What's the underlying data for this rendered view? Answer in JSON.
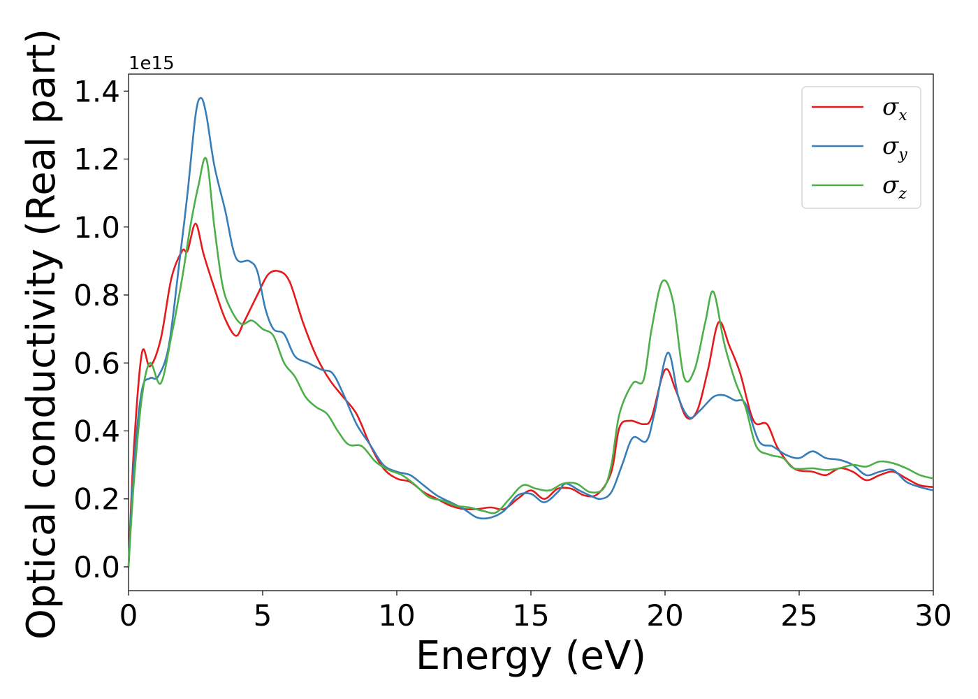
{
  "chart_data": {
    "type": "line",
    "xlabel": "Energy (eV)",
    "ylabel": "Optical conductivity (Real part)",
    "y_offset_label": "1e15",
    "xlim": [
      0,
      30
    ],
    "ylim": [
      -0.07,
      1.45
    ],
    "x_ticks": [
      0,
      5,
      10,
      15,
      20,
      25,
      30
    ],
    "y_ticks": [
      0.0,
      0.2,
      0.4,
      0.6,
      0.8,
      1.0,
      1.2,
      1.4
    ],
    "x_tick_labels": [
      "0",
      "5",
      "10",
      "15",
      "20",
      "25",
      "30"
    ],
    "y_tick_labels": [
      "0.0",
      "0.2",
      "0.4",
      "0.6",
      "0.8",
      "1.0",
      "1.2",
      "1.4"
    ],
    "grid": false,
    "legend_position": "top-right",
    "series": [
      {
        "name": "σx",
        "symbol": "σ",
        "subscript": "x",
        "color": "#e41a1c",
        "points": [
          [
            0,
            0
          ],
          [
            0.2,
            0.35
          ],
          [
            0.5,
            0.63
          ],
          [
            0.8,
            0.59
          ],
          [
            1.2,
            0.67
          ],
          [
            1.6,
            0.85
          ],
          [
            2.0,
            0.93
          ],
          [
            2.2,
            0.93
          ],
          [
            2.5,
            1.01
          ],
          [
            2.8,
            0.92
          ],
          [
            3.2,
            0.82
          ],
          [
            3.6,
            0.73
          ],
          [
            4.0,
            0.68
          ],
          [
            4.3,
            0.72
          ],
          [
            4.8,
            0.8
          ],
          [
            5.2,
            0.86
          ],
          [
            5.6,
            0.87
          ],
          [
            6.0,
            0.84
          ],
          [
            6.5,
            0.72
          ],
          [
            7.0,
            0.62
          ],
          [
            7.5,
            0.55
          ],
          [
            8.0,
            0.5
          ],
          [
            8.5,
            0.45
          ],
          [
            9.0,
            0.36
          ],
          [
            9.5,
            0.29
          ],
          [
            10.0,
            0.26
          ],
          [
            10.5,
            0.25
          ],
          [
            11.0,
            0.22
          ],
          [
            11.5,
            0.2
          ],
          [
            12.0,
            0.18
          ],
          [
            12.5,
            0.17
          ],
          [
            13.0,
            0.17
          ],
          [
            13.5,
            0.175
          ],
          [
            14.0,
            0.17
          ],
          [
            14.5,
            0.2
          ],
          [
            15.0,
            0.225
          ],
          [
            15.5,
            0.2
          ],
          [
            16.0,
            0.23
          ],
          [
            16.5,
            0.23
          ],
          [
            17.0,
            0.21
          ],
          [
            17.5,
            0.215
          ],
          [
            18.0,
            0.28
          ],
          [
            18.3,
            0.41
          ],
          [
            18.7,
            0.43
          ],
          [
            19.2,
            0.42
          ],
          [
            19.5,
            0.44
          ],
          [
            20.0,
            0.58
          ],
          [
            20.4,
            0.52
          ],
          [
            20.8,
            0.44
          ],
          [
            21.2,
            0.46
          ],
          [
            21.6,
            0.58
          ],
          [
            22.0,
            0.72
          ],
          [
            22.4,
            0.65
          ],
          [
            22.8,
            0.57
          ],
          [
            23.3,
            0.43
          ],
          [
            23.8,
            0.42
          ],
          [
            24.2,
            0.35
          ],
          [
            24.8,
            0.29
          ],
          [
            25.5,
            0.28
          ],
          [
            26.0,
            0.27
          ],
          [
            26.5,
            0.29
          ],
          [
            27.0,
            0.28
          ],
          [
            27.5,
            0.255
          ],
          [
            28.0,
            0.27
          ],
          [
            28.5,
            0.28
          ],
          [
            29.0,
            0.26
          ],
          [
            29.5,
            0.24
          ],
          [
            30.0,
            0.235
          ]
        ]
      },
      {
        "name": "σy",
        "symbol": "σ",
        "subscript": "y",
        "color": "#377eb8",
        "points": [
          [
            0,
            0
          ],
          [
            0.2,
            0.3
          ],
          [
            0.5,
            0.52
          ],
          [
            0.8,
            0.555
          ],
          [
            1.1,
            0.56
          ],
          [
            1.5,
            0.65
          ],
          [
            1.9,
            0.9
          ],
          [
            2.2,
            1.1
          ],
          [
            2.5,
            1.33
          ],
          [
            2.7,
            1.38
          ],
          [
            2.9,
            1.33
          ],
          [
            3.2,
            1.18
          ],
          [
            3.6,
            1.05
          ],
          [
            4.0,
            0.91
          ],
          [
            4.5,
            0.9
          ],
          [
            4.8,
            0.87
          ],
          [
            5.1,
            0.76
          ],
          [
            5.4,
            0.7
          ],
          [
            5.8,
            0.685
          ],
          [
            6.2,
            0.62
          ],
          [
            6.7,
            0.6
          ],
          [
            7.2,
            0.58
          ],
          [
            7.6,
            0.57
          ],
          [
            8.0,
            0.51
          ],
          [
            8.5,
            0.42
          ],
          [
            9.0,
            0.36
          ],
          [
            9.5,
            0.3
          ],
          [
            10.0,
            0.28
          ],
          [
            10.5,
            0.27
          ],
          [
            11.0,
            0.24
          ],
          [
            11.5,
            0.21
          ],
          [
            12.0,
            0.19
          ],
          [
            12.5,
            0.17
          ],
          [
            13.0,
            0.145
          ],
          [
            13.5,
            0.145
          ],
          [
            14.0,
            0.165
          ],
          [
            14.5,
            0.21
          ],
          [
            15.0,
            0.215
          ],
          [
            15.5,
            0.19
          ],
          [
            16.0,
            0.22
          ],
          [
            16.3,
            0.245
          ],
          [
            16.8,
            0.225
          ],
          [
            17.2,
            0.21
          ],
          [
            17.6,
            0.2
          ],
          [
            18.0,
            0.22
          ],
          [
            18.4,
            0.3
          ],
          [
            18.8,
            0.38
          ],
          [
            19.3,
            0.37
          ],
          [
            19.6,
            0.45
          ],
          [
            20.1,
            0.63
          ],
          [
            20.5,
            0.5
          ],
          [
            20.9,
            0.44
          ],
          [
            21.3,
            0.46
          ],
          [
            21.8,
            0.5
          ],
          [
            22.2,
            0.505
          ],
          [
            22.6,
            0.49
          ],
          [
            23.0,
            0.48
          ],
          [
            23.5,
            0.37
          ],
          [
            24.0,
            0.355
          ],
          [
            24.5,
            0.33
          ],
          [
            25.0,
            0.32
          ],
          [
            25.5,
            0.34
          ],
          [
            26.0,
            0.32
          ],
          [
            26.5,
            0.315
          ],
          [
            27.0,
            0.3
          ],
          [
            27.5,
            0.27
          ],
          [
            28.0,
            0.28
          ],
          [
            28.5,
            0.285
          ],
          [
            29.0,
            0.25
          ],
          [
            29.5,
            0.235
          ],
          [
            30.0,
            0.225
          ]
        ]
      },
      {
        "name": "σz",
        "symbol": "σ",
        "subscript": "z",
        "color": "#4daf4a",
        "points": [
          [
            0,
            0
          ],
          [
            0.2,
            0.25
          ],
          [
            0.5,
            0.5
          ],
          [
            0.8,
            0.6
          ],
          [
            1.2,
            0.54
          ],
          [
            1.6,
            0.68
          ],
          [
            2.0,
            0.85
          ],
          [
            2.3,
            1.0
          ],
          [
            2.6,
            1.12
          ],
          [
            2.9,
            1.2
          ],
          [
            3.2,
            1.0
          ],
          [
            3.5,
            0.83
          ],
          [
            3.8,
            0.76
          ],
          [
            4.2,
            0.715
          ],
          [
            4.6,
            0.725
          ],
          [
            5.0,
            0.7
          ],
          [
            5.4,
            0.68
          ],
          [
            5.8,
            0.6
          ],
          [
            6.2,
            0.56
          ],
          [
            6.6,
            0.5
          ],
          [
            7.0,
            0.47
          ],
          [
            7.4,
            0.45
          ],
          [
            7.8,
            0.4
          ],
          [
            8.2,
            0.36
          ],
          [
            8.7,
            0.355
          ],
          [
            9.2,
            0.31
          ],
          [
            9.7,
            0.285
          ],
          [
            10.2,
            0.27
          ],
          [
            10.7,
            0.24
          ],
          [
            11.2,
            0.205
          ],
          [
            11.7,
            0.195
          ],
          [
            12.2,
            0.18
          ],
          [
            12.7,
            0.175
          ],
          [
            13.2,
            0.165
          ],
          [
            13.7,
            0.16
          ],
          [
            14.2,
            0.2
          ],
          [
            14.7,
            0.24
          ],
          [
            15.2,
            0.23
          ],
          [
            15.7,
            0.225
          ],
          [
            16.2,
            0.245
          ],
          [
            16.7,
            0.245
          ],
          [
            17.2,
            0.22
          ],
          [
            17.7,
            0.23
          ],
          [
            18.0,
            0.3
          ],
          [
            18.3,
            0.45
          ],
          [
            18.8,
            0.54
          ],
          [
            19.2,
            0.55
          ],
          [
            19.5,
            0.7
          ],
          [
            19.9,
            0.84
          ],
          [
            20.3,
            0.78
          ],
          [
            20.7,
            0.56
          ],
          [
            21.1,
            0.58
          ],
          [
            21.5,
            0.72
          ],
          [
            21.8,
            0.81
          ],
          [
            22.2,
            0.66
          ],
          [
            22.6,
            0.55
          ],
          [
            23.0,
            0.47
          ],
          [
            23.4,
            0.355
          ],
          [
            23.9,
            0.33
          ],
          [
            24.4,
            0.32
          ],
          [
            24.8,
            0.29
          ],
          [
            25.5,
            0.29
          ],
          [
            26.0,
            0.285
          ],
          [
            26.5,
            0.29
          ],
          [
            27.0,
            0.3
          ],
          [
            27.5,
            0.295
          ],
          [
            28.0,
            0.31
          ],
          [
            28.5,
            0.305
          ],
          [
            29.0,
            0.29
          ],
          [
            29.5,
            0.27
          ],
          [
            30.0,
            0.26
          ]
        ]
      }
    ]
  }
}
